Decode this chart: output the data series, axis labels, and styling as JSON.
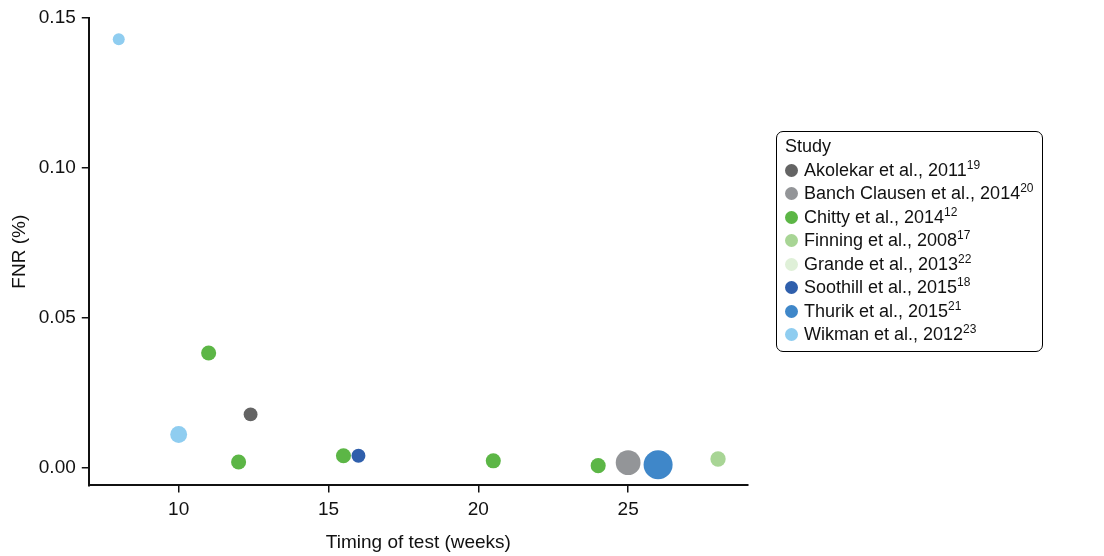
{
  "chart_data": {
    "type": "bubble",
    "xlabel": "Timing of test (weeks)",
    "ylabel": "FNR (%)",
    "legend_title": "Study",
    "legend": "right",
    "marker": "circle",
    "grid": false,
    "xlim": [
      7,
      29
    ],
    "xticks": [
      10,
      15,
      20,
      25
    ],
    "ylim": [
      -0.006,
      0.15
    ],
    "yticks": [
      {
        "value": 0,
        "label": "0.00"
      },
      {
        "value": 0.05,
        "label": "0.05"
      },
      {
        "value": 0.1,
        "label": "0.10"
      },
      {
        "value": 0.15,
        "label": "0.15"
      }
    ],
    "series": [
      {
        "name": "Akolekar et al., 2011$^{19}$",
        "color": "#646464",
        "x": [
          12.4
        ],
        "values": [
          0.0177
        ],
        "sizes": [
          0.23
        ]
      },
      {
        "name": "Banch Clausen et al., 2014$^{20}$",
        "color": "#939598",
        "x": [
          25
        ],
        "values": [
          0.0016
        ],
        "sizes": [
          0.73
        ]
      },
      {
        "name": "Chitty et al., 2014$^{12}$",
        "color": "#5cb646",
        "x": [
          11,
          12,
          15.5,
          20.5,
          24
        ],
        "values": [
          0.0382,
          0.0018,
          0.0039,
          0.0022,
          0.0006
        ],
        "sizes": [
          0.27,
          0.27,
          0.27,
          0.27,
          0.27
        ]
      },
      {
        "name": "Finning et al., 2008$^{17}$",
        "color": "#a8d595",
        "x": [
          28
        ],
        "values": [
          0.0028
        ],
        "sizes": [
          0.28
        ]
      },
      {
        "name": "Grande et al., 2013$^{22}$",
        "color": "#dff0d8"
      },
      {
        "name": "Soothill et al., 2015$^{18}$",
        "color": "#2f5fac",
        "x": [
          16
        ],
        "values": [
          0.0039
        ],
        "sizes": [
          0.23
        ]
      },
      {
        "name": "Thurik et al., 2015$^{21}$",
        "color": "#3f87c9",
        "x": [
          26
        ],
        "values": [
          0.0009
        ],
        "sizes": [
          1
        ]
      },
      {
        "name": "Wikman et al., 2012$^{23}$",
        "color": "#8fcdf0",
        "x": [
          8,
          10
        ],
        "values": [
          0.1429,
          0.011
        ],
        "sizes": [
          0.17,
          0.34
        ]
      }
    ]
  }
}
